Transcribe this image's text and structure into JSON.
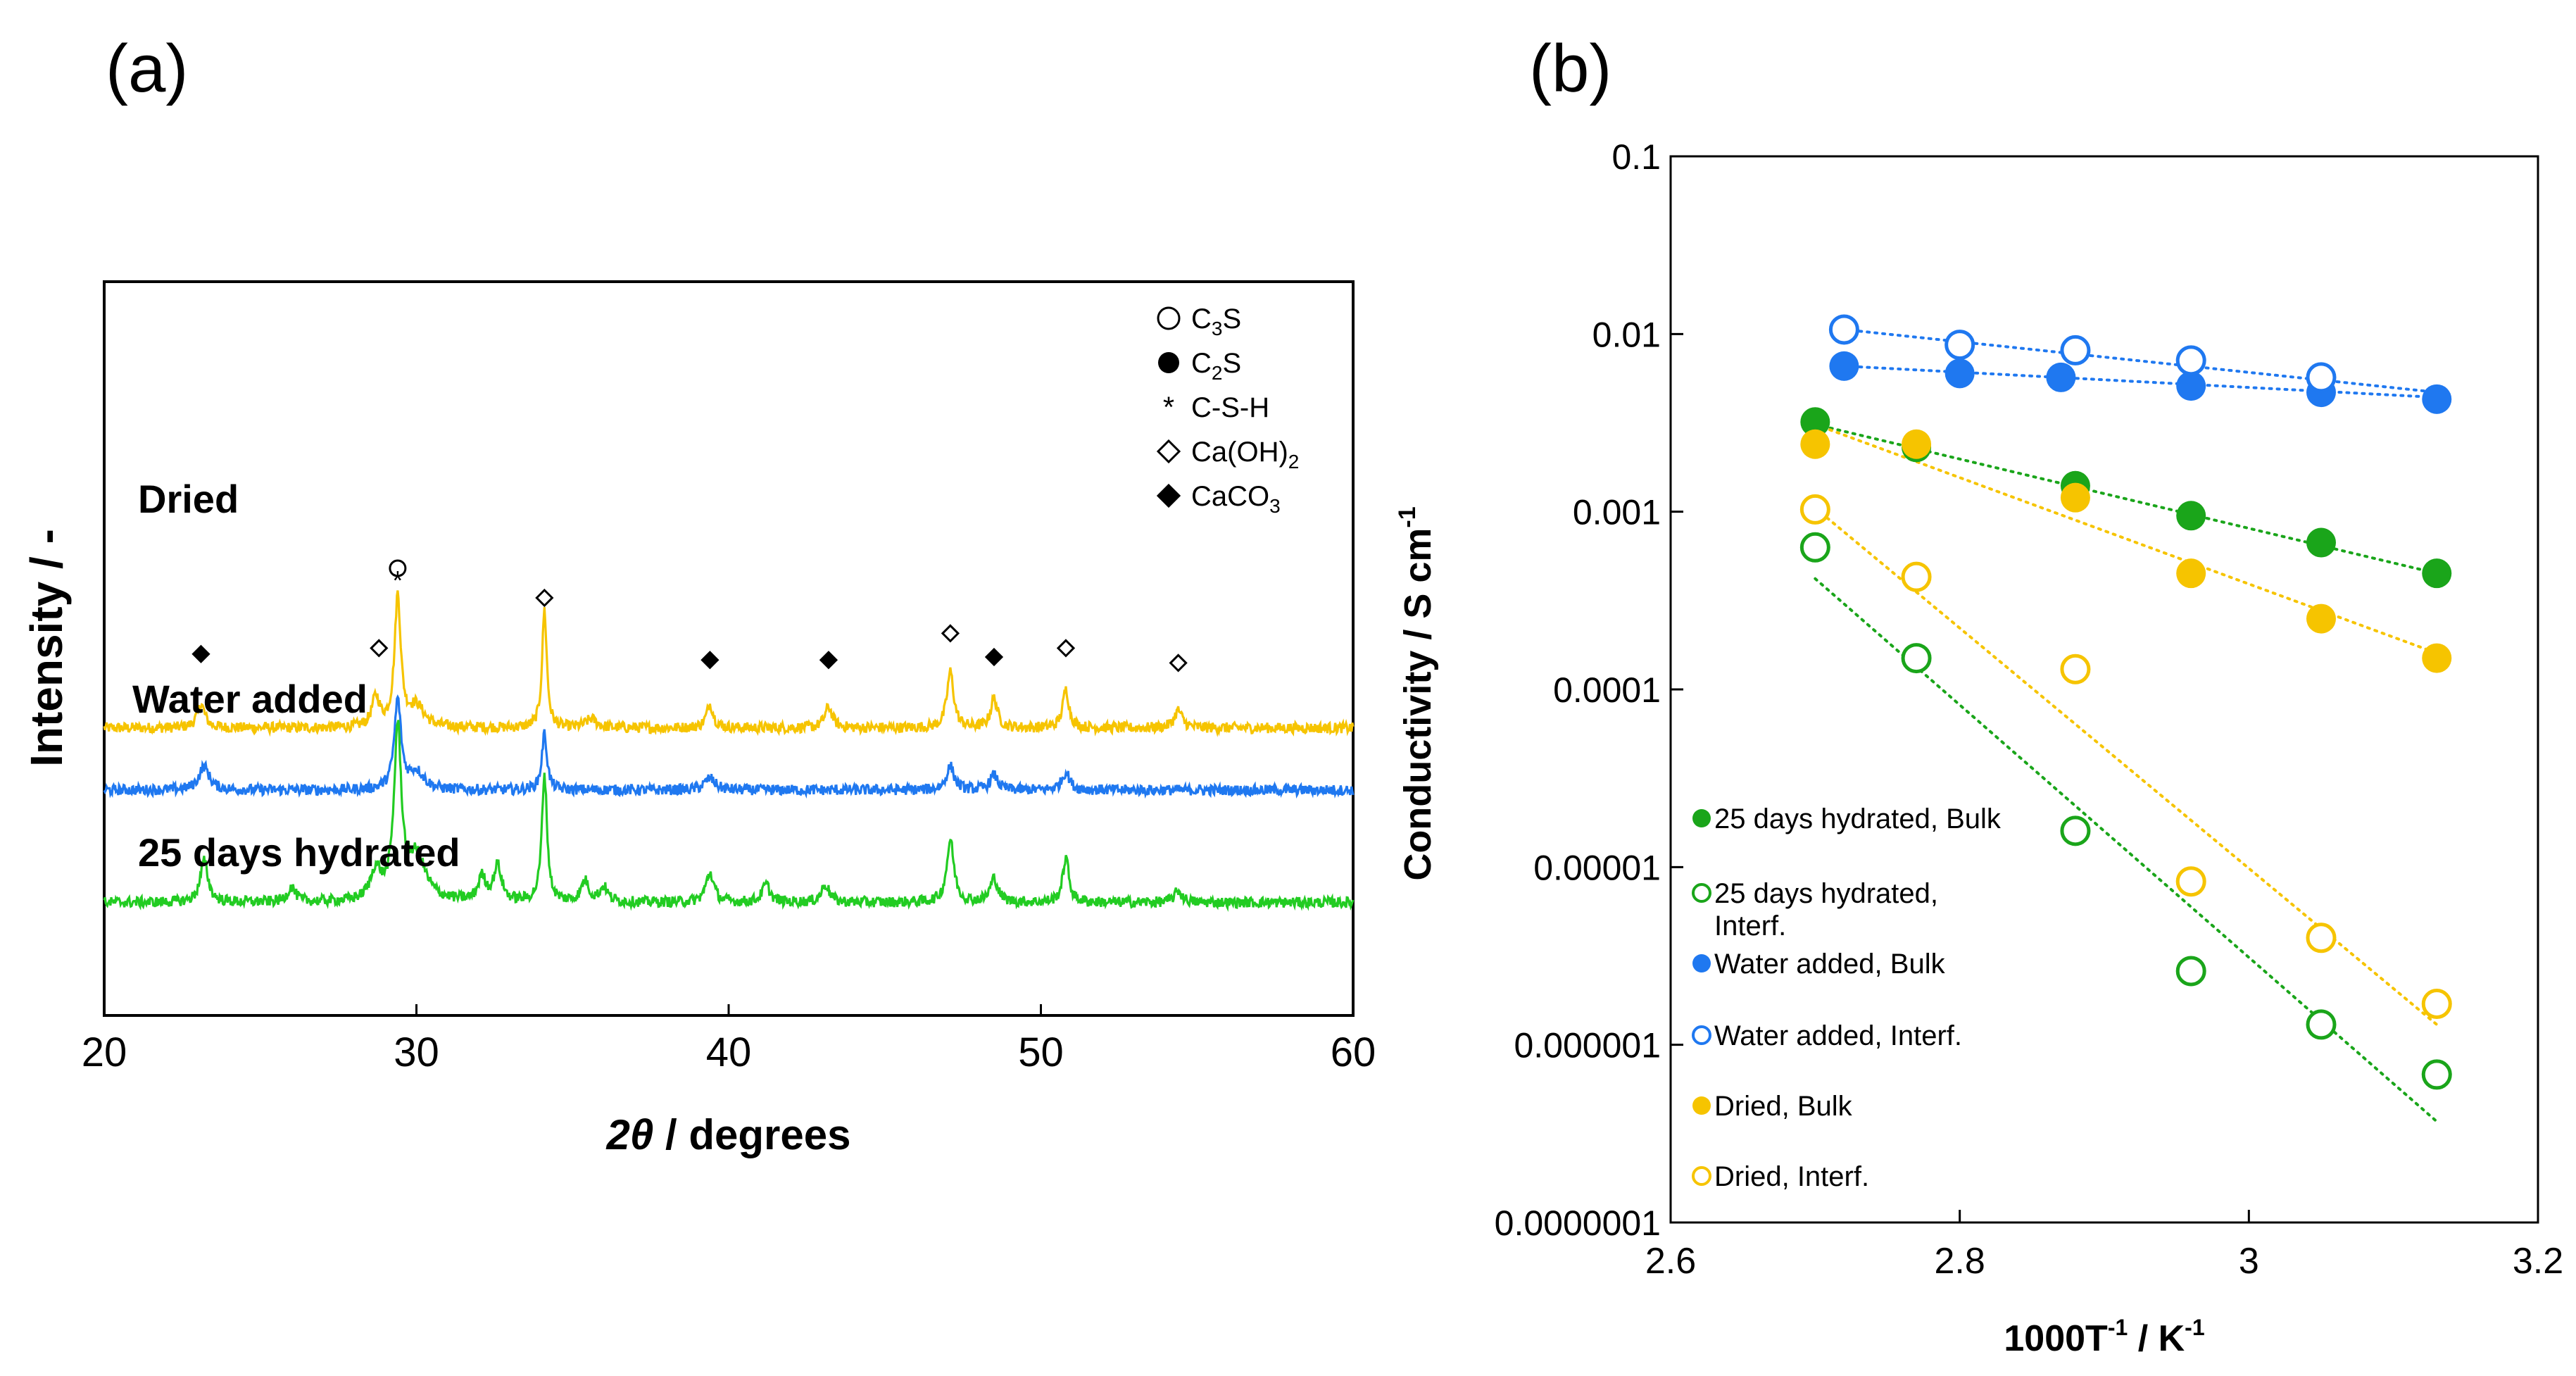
{
  "chart_data": [
    {
      "panel_label": "(a)",
      "type": "line",
      "xlabel_symbol": "2θ",
      "xlabel_rest": " / degrees",
      "ylabel": "Intensity / -",
      "xlim": [
        20,
        60
      ],
      "xticks": [
        "20",
        "30",
        "40",
        "50",
        "60"
      ],
      "legend_position": "top-right",
      "legend": [
        {
          "marker": "open-circle",
          "base": "C",
          "sub": "3",
          "tail": "S"
        },
        {
          "marker": "filled-circle",
          "base": "C",
          "sub": "2",
          "tail": "S"
        },
        {
          "marker": "asterisk",
          "base": "C-S-H",
          "sub": "",
          "tail": ""
        },
        {
          "marker": "open-diamond",
          "base": "Ca(OH)",
          "sub": "2",
          "tail": ""
        },
        {
          "marker": "filled-diamond",
          "base": "CaCO",
          "sub": "3",
          "tail": ""
        }
      ],
      "series": [
        {
          "name": "Dried",
          "color": "#f6c400",
          "baseline": 0.21,
          "noise": 0.018,
          "peaks": [
            [
              23.1,
              0.08,
              0.15
            ],
            [
              28.7,
              0.1,
              0.15
            ],
            [
              29.4,
              0.44,
              0.12
            ],
            [
              30.0,
              0.07,
              0.3
            ],
            [
              34.1,
              0.4,
              0.09
            ],
            [
              35.6,
              0.03,
              0.2
            ],
            [
              39.4,
              0.08,
              0.13
            ],
            [
              43.2,
              0.07,
              0.15
            ],
            [
              47.1,
              0.19,
              0.13
            ],
            [
              48.5,
              0.1,
              0.13
            ],
            [
              50.8,
              0.13,
              0.12
            ],
            [
              54.4,
              0.06,
              0.15
            ]
          ]
        },
        {
          "name": "Water added",
          "color": "#1f78f0",
          "baseline": 0.0,
          "noise": 0.018,
          "peaks": [
            [
              23.2,
              0.08,
              0.2
            ],
            [
              29.4,
              0.3,
              0.13
            ],
            [
              30.0,
              0.06,
              0.3
            ],
            [
              34.1,
              0.19,
              0.1
            ],
            [
              39.4,
              0.04,
              0.2
            ],
            [
              47.1,
              0.08,
              0.15
            ],
            [
              48.5,
              0.05,
              0.15
            ],
            [
              50.8,
              0.06,
              0.15
            ]
          ]
        },
        {
          "name": "25 days hydrated",
          "color": "#22cc22",
          "baseline": -0.38,
          "noise": 0.018,
          "peaks": [
            [
              23.2,
              0.14,
              0.15
            ],
            [
              26.0,
              0.05,
              0.15
            ],
            [
              28.7,
              0.1,
              0.2
            ],
            [
              29.4,
              0.57,
              0.14
            ],
            [
              30.0,
              0.15,
              0.35
            ],
            [
              32.1,
              0.08,
              0.15
            ],
            [
              32.6,
              0.12,
              0.15
            ],
            [
              34.1,
              0.43,
              0.1
            ],
            [
              35.4,
              0.07,
              0.15
            ],
            [
              36.0,
              0.05,
              0.15
            ],
            [
              39.4,
              0.1,
              0.15
            ],
            [
              41.2,
              0.06,
              0.15
            ],
            [
              43.1,
              0.06,
              0.15
            ],
            [
              47.1,
              0.21,
              0.14
            ],
            [
              48.5,
              0.08,
              0.15
            ],
            [
              50.8,
              0.15,
              0.12
            ],
            [
              54.4,
              0.04,
              0.15
            ]
          ]
        }
      ],
      "annotations": [
        {
          "marker": "open-circle",
          "x": 29.4,
          "level": 0.75
        },
        {
          "marker": "asterisk",
          "x": 29.4,
          "level": 0.71
        },
        {
          "marker": "open-diamond",
          "x": 34.1,
          "level": 0.65
        },
        {
          "marker": "open-diamond",
          "x": 28.8,
          "level": 0.48
        },
        {
          "marker": "filled-diamond",
          "x": 23.1,
          "level": 0.46
        },
        {
          "marker": "filled-diamond",
          "x": 39.4,
          "level": 0.44
        },
        {
          "marker": "filled-diamond",
          "x": 43.2,
          "level": 0.44
        },
        {
          "marker": "open-diamond",
          "x": 47.1,
          "level": 0.53
        },
        {
          "marker": "filled-diamond",
          "x": 48.5,
          "level": 0.45
        },
        {
          "marker": "open-diamond",
          "x": 50.8,
          "level": 0.48
        },
        {
          "marker": "open-diamond",
          "x": 54.4,
          "level": 0.43
        }
      ]
    },
    {
      "panel_label": "(b)",
      "type": "scatter",
      "xlabel_base": "1000T",
      "xlabel_sup1": "-1",
      "xlabel_mid": " / K",
      "xlabel_sup2": "-1",
      "ylabel_base": "Conductivity / S cm",
      "ylabel_sup": "-1",
      "xlim": [
        2.6,
        3.2
      ],
      "ylim": [
        1e-07,
        0.1
      ],
      "yscale": "log",
      "xticks": [
        2.6,
        2.8,
        3.0,
        3.2
      ],
      "xtick_labels": [
        "2.6",
        "2.8",
        "3",
        "3.2"
      ],
      "yticks": [
        0.1,
        0.01,
        0.001,
        0.0001,
        1e-05,
        1e-06,
        1e-07
      ],
      "ytick_labels": [
        "0.1",
        "0.01",
        "0.001",
        "0.0001",
        "0.00001",
        "0.000001",
        "0.0000001"
      ],
      "legend_position": "bottom-left",
      "series": [
        {
          "name": "25 days hydrated, Bulk",
          "color": "#1aa51a",
          "filled": true,
          "x": [
            2.7,
            2.77,
            2.88,
            2.96,
            3.05,
            3.13
          ],
          "y": [
            0.0032,
            0.0023,
            0.0014,
            0.00095,
            0.00067,
            0.00045
          ],
          "fit": [
            [
              2.7,
              0.0031
            ],
            [
              3.13,
              0.00045
            ]
          ]
        },
        {
          "name_lines": [
            "25 days hydrated,",
            "Interf."
          ],
          "color": "#1aa51a",
          "filled": false,
          "x": [
            2.7,
            2.77,
            2.88,
            2.96,
            3.05,
            3.13
          ],
          "y": [
            0.00063,
            0.00015,
            1.6e-05,
            2.6e-06,
            1.3e-06,
            6.8e-07
          ],
          "fit": [
            [
              2.7,
              0.00042
            ],
            [
              3.13,
              3.7e-07
            ]
          ]
        },
        {
          "name": "Water added, Bulk",
          "color": "#1f78f0",
          "filled": true,
          "x": [
            2.72,
            2.8,
            2.87,
            2.96,
            3.05,
            3.13
          ],
          "y": [
            0.0066,
            0.006,
            0.0057,
            0.0051,
            0.0047,
            0.0043
          ],
          "fit": [
            [
              2.72,
              0.0066
            ],
            [
              3.13,
              0.0044
            ]
          ]
        },
        {
          "name": "Water added, Interf.",
          "color": "#1f78f0",
          "filled": false,
          "x": [
            2.72,
            2.8,
            2.88,
            2.96,
            3.05
          ],
          "y": [
            0.0106,
            0.0087,
            0.0081,
            0.0071,
            0.0057
          ],
          "fit": [
            [
              2.72,
              0.0106
            ],
            [
              3.13,
              0.0047
            ]
          ]
        },
        {
          "name": "Dried, Bulk",
          "color": "#f6c400",
          "filled": true,
          "x": [
            2.7,
            2.77,
            2.88,
            2.96,
            3.05,
            3.13
          ],
          "y": [
            0.0024,
            0.0024,
            0.0012,
            0.00045,
            0.00025,
            0.00015
          ],
          "fit": [
            [
              2.7,
              0.0031
            ],
            [
              3.13,
              0.00016
            ]
          ]
        },
        {
          "name": "Dried, Interf.",
          "color": "#f6c400",
          "filled": false,
          "x": [
            2.7,
            2.77,
            2.88,
            2.96,
            3.05,
            3.13
          ],
          "y": [
            0.00103,
            0.00043,
            0.00013,
            8.3e-06,
            4e-06,
            1.7e-06
          ],
          "fit": [
            [
              2.7,
              0.00105
            ],
            [
              3.13,
              1.3e-06
            ]
          ]
        }
      ]
    }
  ]
}
